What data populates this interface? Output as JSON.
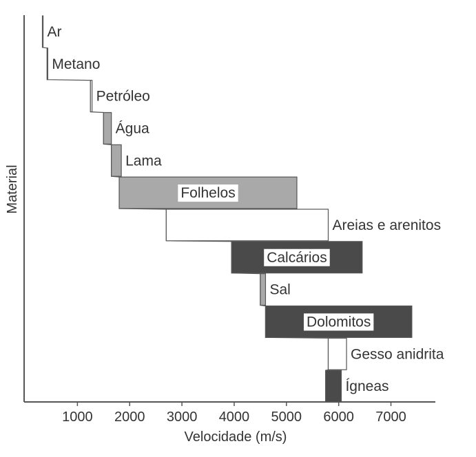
{
  "chart_data": {
    "type": "bar",
    "orientation": "horizontal-range",
    "xlabel": "Velocidade (m/s)",
    "ylabel": "Material",
    "xticks": [
      1000,
      2000,
      3000,
      4000,
      5000,
      6000,
      7000
    ],
    "xlim": [
      -20,
      7850
    ],
    "grid": false,
    "legend": "none",
    "colors": {
      "light": "#a9a9a9",
      "dark": "#4a4a4a",
      "white": "#ffffff",
      "line": "#555555"
    },
    "materials": [
      {
        "name": "Ar",
        "min": 330,
        "max": 340,
        "fill": "white",
        "label_boxed": false
      },
      {
        "name": "Metano",
        "min": 420,
        "max": 430,
        "fill": "white",
        "label_boxed": false
      },
      {
        "name": "Petróleo",
        "min": 1250,
        "max": 1280,
        "fill": "white",
        "label_boxed": false
      },
      {
        "name": "Água",
        "min": 1500,
        "max": 1650,
        "fill": "light",
        "label_boxed": false
      },
      {
        "name": "Lama",
        "min": 1650,
        "max": 1840,
        "fill": "light",
        "label_boxed": false
      },
      {
        "name": "Folhelos",
        "min": 1800,
        "max": 5200,
        "fill": "light",
        "label_boxed": true
      },
      {
        "name": "Areias e arenitos",
        "min": 2700,
        "max": 5800,
        "fill": "white",
        "label_boxed": false
      },
      {
        "name": "Calcários",
        "min": 3950,
        "max": 6450,
        "fill": "dark",
        "label_boxed": true
      },
      {
        "name": "Sal",
        "min": 4500,
        "max": 4600,
        "fill": "light",
        "label_boxed": false
      },
      {
        "name": "Dolomitos",
        "min": 4600,
        "max": 7400,
        "fill": "dark",
        "label_boxed": true
      },
      {
        "name": "Gesso anidrita",
        "min": 5800,
        "max": 6150,
        "fill": "white",
        "label_boxed": false
      },
      {
        "name": "Ígneas",
        "min": 5750,
        "max": 6050,
        "fill": "dark",
        "label_boxed": false
      }
    ]
  }
}
